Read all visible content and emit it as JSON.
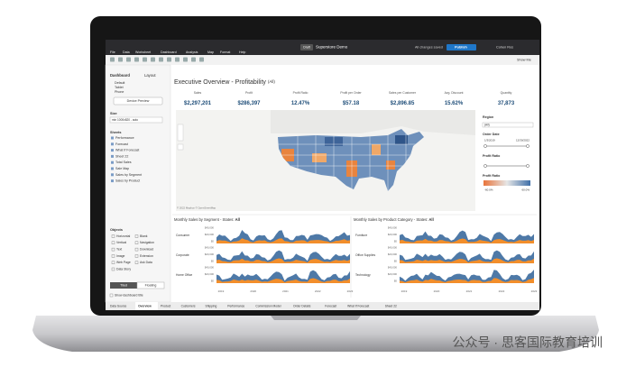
{
  "app": {
    "badge": "Draft",
    "workbook": "Superstore Demo",
    "save_status": "All changes saved",
    "publish": "Publish",
    "user": "Cohen Ros",
    "show_me": "Show Me"
  },
  "menu": [
    "File",
    "Data",
    "Worksheet",
    "Dashboard",
    "Analysis",
    "Map",
    "Format",
    "Help"
  ],
  "left_pane": {
    "tabs": [
      "Dashboard",
      "Layout"
    ],
    "devices": [
      "Default",
      "Tablet",
      "Phone"
    ],
    "device_preview": "Device Preview",
    "size_label": "Size",
    "size_value": "min 1000x820 - auto",
    "sheets_label": "Sheets",
    "sheets": [
      "Performance",
      "Forecast",
      "What If Forecast",
      "Sheet 22",
      "Total Sales",
      "Sale Map",
      "Sales by Segment",
      "Sales by Product"
    ],
    "objects_label": "Objects",
    "objects": [
      "Horizontal",
      "Blank",
      "Vertical",
      "Navigation",
      "Text",
      "Download",
      "Image",
      "Extension",
      "Web Page",
      "Ask Data",
      "Data Story"
    ],
    "layout_modes": [
      "Tiled",
      "Floating"
    ],
    "show_title": "Show dashboard title"
  },
  "dashboard": {
    "title": "Executive Overview - Profitability",
    "title_scope": "(All)",
    "kpis": [
      {
        "label": "Sales",
        "value": "$2,297,201"
      },
      {
        "label": "Profit",
        "value": "$286,397"
      },
      {
        "label": "Profit Ratio",
        "value": "12.47%"
      },
      {
        "label": "Profit per Order",
        "value": "$57.18"
      },
      {
        "label": "Sales per Customer",
        "value": "$2,896.85"
      },
      {
        "label": "Avg. Discount",
        "value": "15.62%"
      },
      {
        "label": "Quantity",
        "value": "37,873"
      }
    ],
    "map_credit": "© 2022 Mapbox © OpenStreetMap",
    "filters": {
      "region_label": "Region",
      "region_value": "(All)",
      "order_date_label": "Order Date",
      "date_start": "1/3/2019",
      "date_end": "12/30/2022",
      "profit_ratio_label": "Profit Ratio",
      "legend_label": "Profit Ratio",
      "legend_min": "-60.0%",
      "legend_max": "60.0%"
    },
    "charts": [
      {
        "title": "Monthly Sales by Segment - States:",
        "scope": "All",
        "rows": [
          "Consumer",
          "Corporate",
          "Home Office"
        ],
        "yticks": [
          "$40,000",
          "$20,000",
          "$0"
        ],
        "years": [
          "2019",
          "2020",
          "2021",
          "2022",
          "2023"
        ]
      },
      {
        "title": "Monthly Sales by Product Category - States:",
        "scope": "All",
        "rows": [
          "Furniture",
          "Office Supplies",
          "Technology"
        ],
        "yticks": [
          "$40,000",
          "$20,000",
          "$0"
        ],
        "years": [
          "2019",
          "2020",
          "2021",
          "2022",
          "2023"
        ]
      }
    ]
  },
  "tabs": [
    "Data Source",
    "Overview",
    "Product",
    "Customers",
    "Shipping",
    "Performance",
    "Commission Model",
    "Order Details",
    "Forecast",
    "What If Forecast",
    "Sheet 22"
  ],
  "watermark": "公众号 · 思客国际教育培训"
}
